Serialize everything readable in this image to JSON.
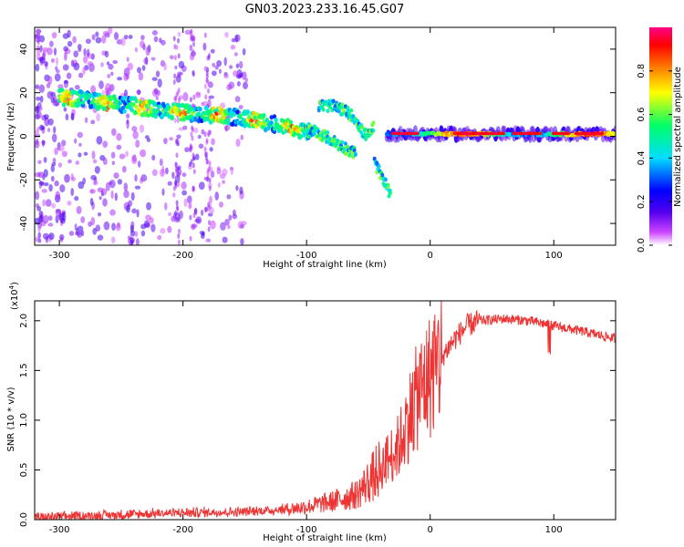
{
  "title": "GN03.2023.233.16.45.G07",
  "chart_data": [
    {
      "type": "heatmap",
      "xlabel": "Height of straight line (km)",
      "ylabel": "Frequency (Hz)",
      "xlim": [
        -320,
        150
      ],
      "ylim": [
        -50,
        50
      ],
      "xticks": [
        "-300",
        "-200",
        "-100",
        "0",
        "100"
      ],
      "yticks": [
        "-40",
        "-20",
        "0",
        "20",
        "40"
      ],
      "colorbar": {
        "label": "Normalized spectral amplitude",
        "range": [
          0.0,
          1.0
        ],
        "ticks": [
          "0.0",
          "0.2",
          "0.4",
          "0.6",
          "0.8"
        ]
      },
      "main_ridge": {
        "x": [
          -300,
          -280,
          -260,
          -240,
          -220,
          -200,
          -180,
          -160,
          -140,
          -120,
          -100,
          -95
        ],
        "y": [
          18,
          17,
          15,
          14,
          12,
          11,
          10,
          9,
          7,
          5,
          2,
          0
        ]
      },
      "branch_ridges": [
        {
          "x": [
            -100,
            -85,
            -70,
            -60
          ],
          "y": [
            4,
            0,
            -5,
            -8
          ]
        },
        {
          "x": [
            -90,
            -80,
            -70,
            -60,
            -55,
            -50,
            -45
          ],
          "y": [
            14,
            14,
            12,
            8,
            2,
            0,
            5
          ]
        },
        {
          "x": [
            -45,
            -40,
            -35,
            -32
          ],
          "y": [
            -12,
            -18,
            -22,
            -28
          ]
        }
      ],
      "flat_ridge": {
        "x": [
          -35,
          150
        ],
        "y": [
          1,
          1
        ]
      }
    },
    {
      "type": "line",
      "xlabel": "Height of straight line (km)",
      "ylabel": "SNR (10 * v/v)",
      "multiplier": "(x10",
      "multiplier_exp": "4",
      "multiplier_close": ")",
      "xlim": [
        -320,
        150
      ],
      "ylim": [
        0,
        2.2
      ],
      "xticks": [
        "-300",
        "-200",
        "-100",
        "0",
        "100"
      ],
      "yticks": [
        "0.0",
        "0.5",
        "1.0",
        "1.5",
        "2.0"
      ],
      "color": "#ee3333",
      "trend": {
        "x": [
          -320,
          -300,
          -250,
          -200,
          -150,
          -120,
          -100,
          -80,
          -60,
          -45,
          -35,
          -25,
          -20,
          -15,
          -10,
          0,
          10,
          20,
          30,
          40,
          60,
          80,
          100,
          120,
          150
        ],
        "y": [
          0.02,
          0.03,
          0.05,
          0.07,
          0.08,
          0.1,
          0.13,
          0.18,
          0.25,
          0.45,
          0.6,
          0.75,
          0.95,
          1.1,
          1.25,
          1.45,
          1.65,
          1.82,
          1.95,
          2.0,
          2.02,
          2.0,
          1.95,
          1.9,
          1.82
        ]
      }
    }
  ]
}
